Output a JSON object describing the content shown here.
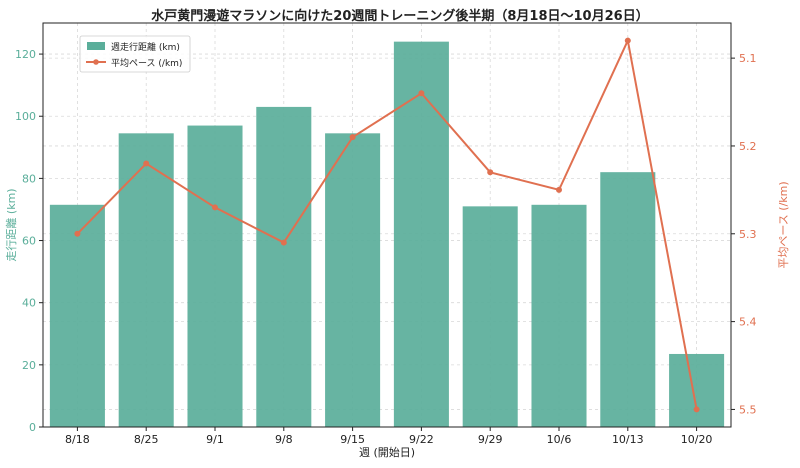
{
  "chart_data": {
    "type": "bar+line",
    "title": "水戸黄門漫遊マラソンに向けた20週間トレーニング後半期（8月18日～10月26日）",
    "xlabel": "週 (開始日)",
    "ylabel_left": "走行距離 (km)",
    "ylabel_right": "平均ペース (/km)",
    "categories": [
      "8/18",
      "8/25",
      "9/1",
      "9/8",
      "9/15",
      "9/22",
      "9/29",
      "10/6",
      "10/13",
      "10/20"
    ],
    "bar_series": {
      "name": "週走行距離 (km)",
      "color": "#5aae9a",
      "values": [
        71.5,
        94.5,
        97,
        103,
        94.5,
        124,
        71,
        71.5,
        82,
        23.5
      ]
    },
    "line_series": {
      "name": "平均ペース (/km)",
      "color": "#e07050",
      "values": [
        5.3,
        5.22,
        5.27,
        5.31,
        5.19,
        5.14,
        5.23,
        5.25,
        5.08,
        5.5
      ]
    },
    "ylim_left": [
      0,
      130
    ],
    "yticks_left": [
      0,
      20,
      40,
      60,
      80,
      100,
      120
    ],
    "ylim_right": [
      5.52,
      5.06
    ],
    "yticks_right": [
      5.1,
      5.2,
      5.3,
      5.4,
      5.5
    ],
    "legend_position": "top-left",
    "grid": true
  }
}
